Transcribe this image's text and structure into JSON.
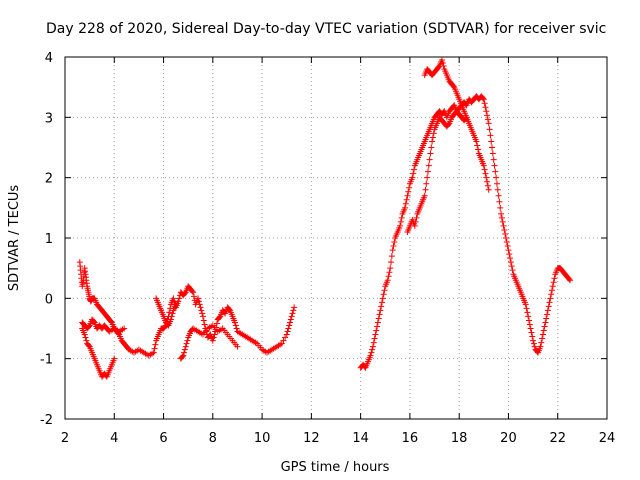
{
  "chart_data": {
    "type": "scatter",
    "title": "Day 228 of 2020, Sidereal Day-to-day VTEC variation (SDTVAR) for receiver svic",
    "xlabel": "GPS time / hours",
    "ylabel": "SDTVAR / TECUs",
    "xlim": [
      2,
      24
    ],
    "ylim": [
      -2,
      4
    ],
    "xticks": [
      2,
      4,
      6,
      8,
      10,
      12,
      14,
      16,
      18,
      20,
      22,
      24
    ],
    "yticks": [
      -2,
      -1,
      0,
      1,
      2,
      3,
      4
    ],
    "grid": true,
    "marker": "plus",
    "color": "#ff0000",
    "series": [
      {
        "name": "svic",
        "x": [
          2.6,
          2.65,
          2.7,
          2.75,
          2.8,
          2.85,
          2.9,
          2.95,
          3.0,
          3.05,
          3.1,
          3.2,
          3.3,
          3.4,
          3.5,
          3.6,
          3.7,
          3.8,
          3.9,
          4.0,
          4.1,
          4.2,
          4.3,
          4.4,
          4.5,
          4.6,
          4.8,
          5.0,
          5.2,
          5.4,
          5.6,
          5.7,
          5.8,
          5.9,
          6.0,
          6.1,
          6.2,
          6.3,
          6.4,
          6.5,
          6.6,
          6.7,
          6.8,
          6.9,
          7.0,
          7.1,
          7.2,
          7.3,
          7.4,
          7.5,
          7.6,
          7.7,
          7.8,
          7.9,
          8.0,
          8.1,
          8.2,
          8.3,
          8.4,
          8.5,
          8.6,
          8.7,
          8.8,
          8.9,
          9.0,
          9.2,
          9.4,
          9.6,
          9.8,
          10.0,
          10.2,
          10.4,
          10.6,
          10.8,
          11.0,
          11.1,
          11.2,
          11.3,
          2.7,
          2.8,
          2.9,
          3.0,
          3.1,
          3.2,
          3.3,
          3.4,
          3.5,
          3.6,
          3.7,
          3.8,
          4.0,
          4.2,
          4.4,
          2.7,
          2.8,
          2.9,
          3.0,
          3.1,
          3.2,
          3.3,
          3.4,
          3.5,
          3.6,
          3.7,
          3.8,
          3.9,
          4.0,
          6.7,
          6.8,
          6.9,
          7.0,
          7.1,
          7.2,
          7.4,
          7.6,
          7.8,
          8.0,
          8.2,
          8.4,
          8.6,
          8.8,
          9.0,
          5.7,
          5.8,
          5.9,
          6.0,
          6.1,
          6.2,
          6.3,
          6.4,
          6.5,
          14.0,
          14.1,
          14.2,
          14.3,
          14.4,
          14.5,
          14.6,
          14.7,
          14.8,
          14.9,
          15.0,
          15.1,
          15.2,
          15.3,
          15.4,
          15.5,
          15.6,
          15.7,
          15.8,
          15.9,
          16.0,
          16.1,
          16.2,
          16.3,
          16.4,
          16.5,
          16.6,
          16.7,
          16.8,
          16.9,
          17.0,
          17.1,
          17.2,
          17.3,
          17.4,
          17.5,
          17.6,
          17.7,
          17.8,
          17.9,
          18.0,
          18.1,
          18.2,
          18.3,
          18.4,
          18.5,
          18.6,
          18.7,
          18.8,
          18.9,
          19.0,
          19.1,
          19.2,
          19.3,
          19.4,
          19.5,
          19.6,
          19.7,
          19.8,
          19.9,
          20.0,
          20.1,
          20.2,
          20.3,
          20.4,
          20.5,
          20.6,
          20.7,
          20.8,
          20.9,
          21.0,
          21.1,
          21.2,
          21.3,
          21.4,
          21.5,
          21.6,
          21.7,
          21.8,
          21.9,
          22.0,
          22.1,
          22.2,
          22.3,
          22.4,
          22.5,
          15.9,
          16.0,
          16.1,
          16.2,
          16.3,
          16.4,
          16.5,
          16.6,
          16.7,
          16.8,
          16.9,
          17.0,
          17.1,
          17.2,
          17.3,
          17.4,
          17.5,
          17.6,
          17.7,
          17.8,
          17.9,
          18.0,
          18.1,
          18.2,
          18.3,
          18.4,
          18.5,
          18.6,
          18.7,
          18.8,
          18.9,
          19.0,
          19.1,
          19.2,
          16.6,
          16.7,
          16.8,
          16.9,
          17.0,
          17.1,
          17.2,
          17.3,
          17.4,
          17.5,
          17.6,
          17.7,
          17.8,
          17.9,
          18.0,
          18.1,
          18.2,
          18.3
        ],
        "y": [
          0.6,
          0.4,
          0.2,
          0.3,
          0.5,
          0.35,
          0.2,
          0.1,
          0.0,
          -0.05,
          0.0,
          0.0,
          -0.1,
          -0.15,
          -0.2,
          -0.25,
          -0.3,
          -0.35,
          -0.4,
          -0.5,
          -0.55,
          -0.6,
          -0.7,
          -0.75,
          -0.8,
          -0.85,
          -0.9,
          -0.85,
          -0.9,
          -0.95,
          -0.9,
          -0.7,
          -0.6,
          -0.5,
          -0.5,
          -0.45,
          -0.3,
          -0.1,
          0.0,
          -0.15,
          -0.05,
          0.1,
          0.05,
          0.1,
          0.2,
          0.15,
          0.1,
          -0.1,
          0.0,
          -0.15,
          -0.3,
          -0.5,
          -0.65,
          -0.6,
          -0.7,
          -0.55,
          -0.35,
          -0.3,
          -0.2,
          -0.25,
          -0.15,
          -0.2,
          -0.3,
          -0.4,
          -0.55,
          -0.6,
          -0.65,
          -0.7,
          -0.75,
          -0.85,
          -0.9,
          -0.85,
          -0.8,
          -0.75,
          -0.6,
          -0.45,
          -0.3,
          -0.15,
          -0.4,
          -0.45,
          -0.5,
          -0.45,
          -0.35,
          -0.4,
          -0.5,
          -0.45,
          -0.5,
          -0.45,
          -0.5,
          -0.55,
          -0.5,
          -0.55,
          -0.5,
          -0.5,
          -0.6,
          -0.75,
          -0.8,
          -0.9,
          -1.0,
          -1.1,
          -1.2,
          -1.3,
          -1.25,
          -1.3,
          -1.2,
          -1.1,
          -1.0,
          -1.0,
          -0.95,
          -0.8,
          -0.65,
          -0.55,
          -0.5,
          -0.55,
          -0.6,
          -0.5,
          -0.45,
          -0.55,
          -0.5,
          -0.6,
          -0.7,
          -0.8,
          0.0,
          -0.1,
          -0.2,
          -0.3,
          -0.4,
          -0.45,
          -0.35,
          -0.2,
          -0.1,
          -1.15,
          -1.1,
          -1.15,
          -1.05,
          -0.95,
          -0.8,
          -0.6,
          -0.4,
          -0.2,
          0.0,
          0.2,
          0.3,
          0.5,
          0.8,
          1.0,
          1.1,
          1.2,
          1.4,
          1.5,
          1.7,
          1.9,
          2.0,
          2.2,
          2.3,
          2.4,
          2.5,
          2.6,
          2.7,
          2.8,
          2.9,
          3.0,
          3.05,
          3.1,
          3.05,
          3.1,
          3.0,
          3.1,
          3.15,
          3.2,
          3.1,
          3.15,
          3.2,
          3.25,
          3.2,
          3.3,
          3.25,
          3.3,
          3.35,
          3.3,
          3.35,
          3.3,
          3.1,
          2.9,
          2.6,
          2.3,
          2.0,
          1.7,
          1.4,
          1.2,
          1.0,
          0.8,
          0.6,
          0.4,
          0.3,
          0.2,
          0.1,
          0.0,
          -0.1,
          -0.3,
          -0.5,
          -0.7,
          -0.85,
          -0.9,
          -0.8,
          -0.6,
          -0.4,
          -0.2,
          0.0,
          0.2,
          0.4,
          0.5,
          0.5,
          0.45,
          0.4,
          0.35,
          0.3,
          1.1,
          1.2,
          1.3,
          1.2,
          1.4,
          1.5,
          1.6,
          1.7,
          2.0,
          2.3,
          2.6,
          2.8,
          2.9,
          3.0,
          2.95,
          2.9,
          2.85,
          2.9,
          3.0,
          3.05,
          3.1,
          3.05,
          3.0,
          2.95,
          3.0,
          2.9,
          2.8,
          2.7,
          2.6,
          2.4,
          2.3,
          2.2,
          2.0,
          1.8,
          3.7,
          3.8,
          3.75,
          3.7,
          3.75,
          3.8,
          3.85,
          3.95,
          3.8,
          3.7,
          3.6,
          3.55,
          3.5,
          3.4,
          3.3,
          3.2,
          3.1,
          3.0
        ]
      }
    ]
  }
}
